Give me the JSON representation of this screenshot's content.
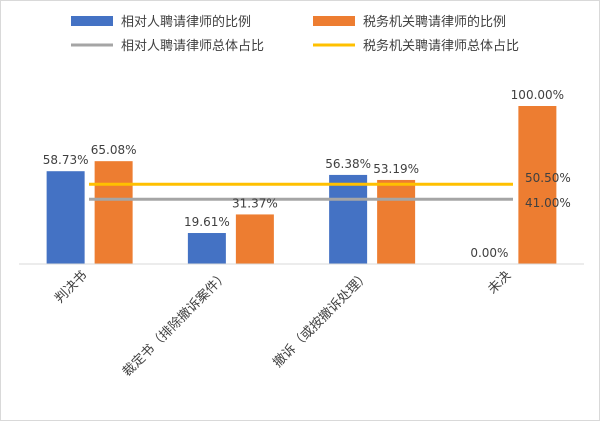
{
  "chart_data": {
    "type": "bar",
    "categories": [
      "判决书",
      "裁定书（排除撤诉案件）",
      "撤诉（或按撤诉处理）",
      "未决"
    ],
    "series": [
      {
        "name": "相对人聘请律师的比例",
        "values": [
          58.73,
          19.61,
          56.38,
          0.0
        ],
        "labels": [
          "58.73%",
          "19.61%",
          "56.38%",
          "0.00%"
        ],
        "color": "#4472C4"
      },
      {
        "name": "税务机关聘请律师的比例",
        "values": [
          65.08,
          31.37,
          53.19,
          100.0
        ],
        "labels": [
          "65.08%",
          "31.37%",
          "53.19%",
          "100.00%"
        ],
        "color": "#ED7D31"
      }
    ],
    "reference_lines": [
      {
        "name": "相对人聘请律师总体占比",
        "value": 41.0,
        "label": "41.00%",
        "color": "#A5A5A5"
      },
      {
        "name": "税务机关聘请律师总体占比",
        "value": 50.5,
        "label": "50.50%",
        "color": "#FFC000"
      }
    ],
    "ylim": [
      0,
      110
    ],
    "grid": false,
    "legend_position": "top"
  }
}
